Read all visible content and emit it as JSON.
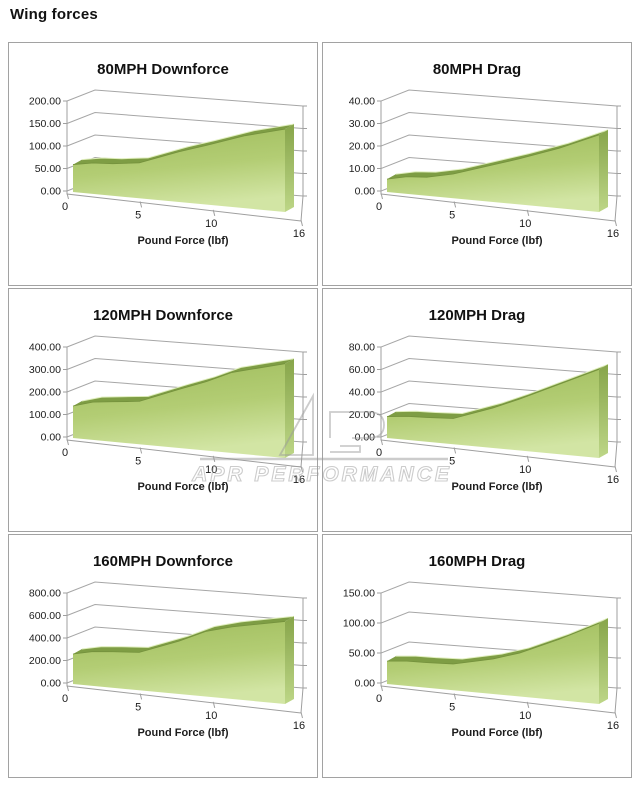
{
  "page": {
    "title": "Wing forces"
  },
  "watermark": {
    "text": "APR PERFORMANCE"
  },
  "colors": {
    "grid": "#a6a6a6",
    "axis": "#9f9f9f",
    "text": "#1c1c1c",
    "title": "#111111",
    "area_top": "#9fbc5c",
    "area_mid": "#b3cd74",
    "area_bottom": "#d2e5a4",
    "band": "#7e9d44",
    "band_rim": "#dfeebc",
    "band_edge": "#74913c",
    "side_top": "#87a54a",
    "side_bottom": "#bdd687",
    "watermark": "#9a9a9a",
    "panel_border": "#a2a2a2"
  },
  "chart_data": [
    {
      "type": "area",
      "title": "80MPH Downforce",
      "xlabel": "Pound Force (lbf)",
      "ymax": 200,
      "yticks": [
        "200.00",
        "150.00",
        "100.00",
        "50.00",
        "0.00"
      ],
      "xticks": [
        {
          "t": 0,
          "label": "0"
        },
        {
          "t": 5,
          "label": "5"
        },
        {
          "t": 10,
          "label": "10"
        },
        {
          "t": 16,
          "label": "16"
        }
      ],
      "xlim": [
        0,
        16
      ],
      "points": [
        [
          0,
          48
        ],
        [
          1.5,
          54
        ],
        [
          3,
          56
        ],
        [
          5,
          62
        ],
        [
          8,
          88
        ],
        [
          10,
          103
        ],
        [
          13,
          127
        ],
        [
          16,
          145
        ]
      ]
    },
    {
      "type": "area",
      "title": "80MPH Drag",
      "xlabel": "Pound Force (lbf)",
      "ymax": 40,
      "yticks": [
        "40.00",
        "30.00",
        "20.00",
        "10.00",
        "0.00"
      ],
      "xticks": [
        {
          "t": 0,
          "label": "0"
        },
        {
          "t": 5,
          "label": "5"
        },
        {
          "t": 10,
          "label": "10"
        },
        {
          "t": 16,
          "label": "16"
        }
      ],
      "xlim": [
        0,
        16
      ],
      "points": [
        [
          0,
          4.5
        ],
        [
          1.5,
          6
        ],
        [
          3,
          6.5
        ],
        [
          5,
          8.5
        ],
        [
          8,
          13
        ],
        [
          10,
          16
        ],
        [
          13,
          21
        ],
        [
          16,
          27
        ]
      ]
    },
    {
      "type": "area",
      "title": "120MPH Downforce",
      "xlabel": "Pound Force (lbf)",
      "ymax": 400,
      "yticks": [
        "400.00",
        "300.00",
        "200.00",
        "100.00",
        "0.00"
      ],
      "xticks": [
        {
          "t": 0,
          "label": "0"
        },
        {
          "t": 5,
          "label": "5"
        },
        {
          "t": 10,
          "label": "10"
        },
        {
          "t": 16,
          "label": "16"
        }
      ],
      "xlim": [
        0,
        16
      ],
      "points": [
        [
          0,
          112
        ],
        [
          1.5,
          132
        ],
        [
          3,
          140
        ],
        [
          5,
          150
        ],
        [
          8,
          205
        ],
        [
          10,
          240
        ],
        [
          12,
          282
        ],
        [
          16,
          330
        ]
      ]
    },
    {
      "type": "area",
      "title": "120MPH Drag",
      "xlabel": "Pound Force (lbf)",
      "ymax": 80,
      "yticks": [
        "80.00",
        "60.00",
        "40.00",
        "20.00",
        "0.00"
      ],
      "xticks": [
        {
          "t": 0,
          "label": "0"
        },
        {
          "t": 5,
          "label": "5"
        },
        {
          "t": 10,
          "label": "10"
        },
        {
          "t": 16,
          "label": "16"
        }
      ],
      "xlim": [
        0,
        16
      ],
      "points": [
        [
          0,
          15
        ],
        [
          1.5,
          16.5
        ],
        [
          3,
          17
        ],
        [
          5,
          18
        ],
        [
          8,
          28
        ],
        [
          10,
          36
        ],
        [
          13,
          49
        ],
        [
          16,
          62
        ]
      ]
    },
    {
      "type": "area",
      "title": "160MPH Downforce",
      "xlabel": "Pound Force (lbf)",
      "ymax": 800,
      "yticks": [
        "800.00",
        "600.00",
        "400.00",
        "200.00",
        "0.00"
      ],
      "xticks": [
        {
          "t": 0,
          "label": "0"
        },
        {
          "t": 5,
          "label": "5"
        },
        {
          "t": 10,
          "label": "10"
        },
        {
          "t": 16,
          "label": "16"
        }
      ],
      "xlim": [
        0,
        16
      ],
      "points": [
        [
          0,
          210
        ],
        [
          1.5,
          240
        ],
        [
          3,
          252
        ],
        [
          5,
          265
        ],
        [
          8,
          370
        ],
        [
          10,
          455
        ],
        [
          12,
          505
        ],
        [
          16,
          578
        ]
      ]
    },
    {
      "type": "area",
      "title": "160MPH Drag",
      "xlabel": "Pound Force (lbf)",
      "ymax": 150,
      "yticks": [
        "150.00",
        "100.00",
        "50.00",
        "0.00"
      ],
      "xticks": [
        {
          "t": 0,
          "label": "0"
        },
        {
          "t": 5,
          "label": "5"
        },
        {
          "t": 10,
          "label": "10"
        },
        {
          "t": 16,
          "label": "16"
        }
      ],
      "xlim": [
        0,
        16
      ],
      "points": [
        [
          0,
          30
        ],
        [
          1.5,
          32.5
        ],
        [
          3,
          33
        ],
        [
          5,
          34.5
        ],
        [
          8,
          46
        ],
        [
          10,
          57
        ],
        [
          13,
          80
        ],
        [
          16,
          106
        ]
      ]
    }
  ]
}
